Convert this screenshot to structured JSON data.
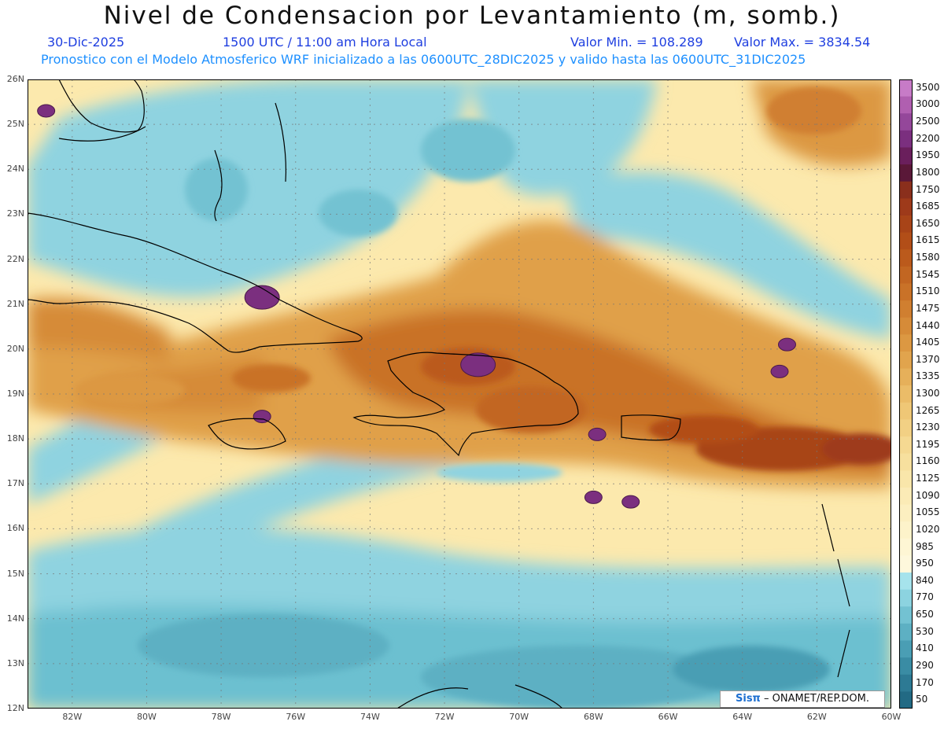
{
  "header": {
    "title": "Nivel de Condensacion por Levantamiento (m, somb.)",
    "date": "30-Dic-2025",
    "time": "1500 UTC / 11:00 am Hora Local",
    "min_label": "Valor Min. = 108.289",
    "max_label": "Valor Max. = 3834.54",
    "forecast": "Pronostico con el Modelo Atmosferico WRF inicializado a las 0600UTC_28DIC2025 y valido hasta las  0600UTC_31DIC2025"
  },
  "credit": {
    "logo": "Sisπ",
    "text": " – ONAMET/REP.DOM."
  },
  "axes": {
    "lat_labels": [
      "26N",
      "25N",
      "24N",
      "23N",
      "22N",
      "21N",
      "20N",
      "19N",
      "18N",
      "17N",
      "16N",
      "15N",
      "14N",
      "13N",
      "12N"
    ],
    "lon_labels": [
      "82W",
      "80W",
      "78W",
      "76W",
      "74W",
      "72W",
      "70W",
      "68W",
      "66W",
      "64W",
      "62W",
      "60W"
    ],
    "lat_range": [
      12,
      26
    ],
    "lon_range": [
      -83.2,
      -60
    ]
  },
  "legend": {
    "labels": [
      "3500",
      "3000",
      "2500",
      "2200",
      "1950",
      "1800",
      "1750",
      "1685",
      "1650",
      "1615",
      "1580",
      "1545",
      "1510",
      "1475",
      "1440",
      "1405",
      "1370",
      "1335",
      "1300",
      "1265",
      "1230",
      "1195",
      "1160",
      "1125",
      "1090",
      "1055",
      "1020",
      "985",
      "950",
      "840",
      "770",
      "650",
      "530",
      "410",
      "290",
      "170",
      "50"
    ],
    "colors": [
      "#c77bc7",
      "#b05fb0",
      "#94479a",
      "#7b2f7f",
      "#6a1f5c",
      "#5a1838",
      "#8a2f1c",
      "#9e3a1a",
      "#a84418",
      "#b24e18",
      "#bb5a1c",
      "#c26622",
      "#c97228",
      "#d07f30",
      "#d68b38",
      "#dc9842",
      "#e1a44d",
      "#e6b05a",
      "#ebbc68",
      "#efc776",
      "#f2d084",
      "#f5d992",
      "#f7e09e",
      "#f9e6aa",
      "#fbebb6",
      "#fcefc0",
      "#fdf3ca",
      "#fef6d4",
      "#fef8dc",
      "#a6e3ec",
      "#8cd3e0",
      "#73c2d2",
      "#5db0c3",
      "#4a9eb4",
      "#3a8ca4",
      "#2d7a94",
      "#226a84"
    ]
  },
  "map": {
    "projection": "lat-lon",
    "field": "lifting condensation level (m)",
    "hot_spots": [
      {
        "name": "north-cuba-cay",
        "lon": -76.9,
        "lat": 21.15
      },
      {
        "name": "hispaniola-cordillera",
        "lon": -71.1,
        "lat": 19.65
      },
      {
        "name": "bahamas-north",
        "lon": -82.7,
        "lat": 25.3
      },
      {
        "name": "jamaica-north",
        "lon": -76.9,
        "lat": 18.5
      },
      {
        "name": "mona-passage",
        "lon": -67.9,
        "lat": 18.1
      },
      {
        "name": "caribbean-south-1",
        "lon": -67.0,
        "lat": 16.6
      },
      {
        "name": "caribbean-south-2",
        "lon": -68.0,
        "lat": 16.7
      },
      {
        "name": "atlantic-east",
        "lon": -62.8,
        "lat": 20.1
      },
      {
        "name": "atlantic-east-2",
        "lon": -63.0,
        "lat": 19.5
      }
    ]
  }
}
